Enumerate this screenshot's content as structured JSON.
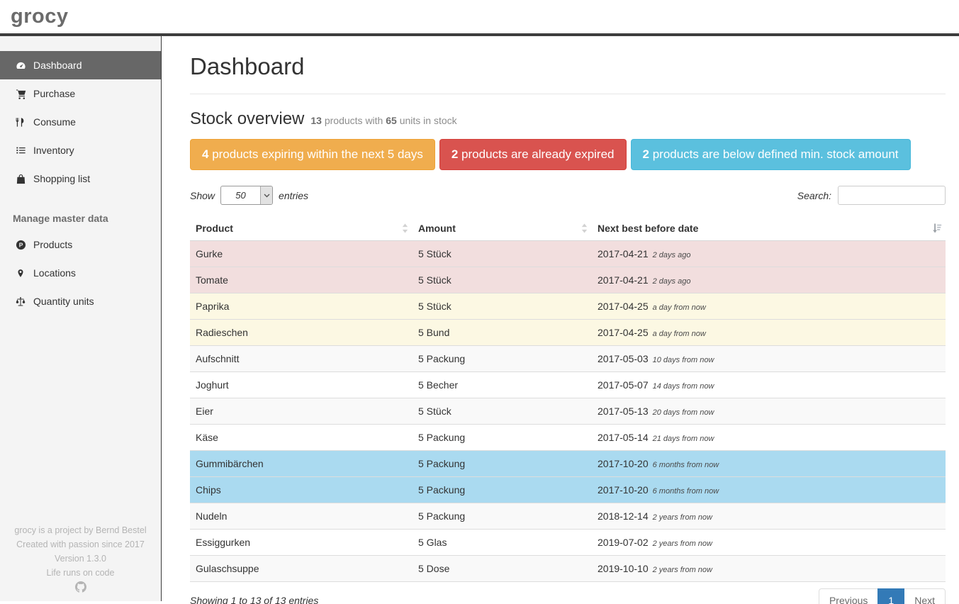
{
  "app": {
    "logo": "grocy"
  },
  "colors": {
    "warning": "#f0ad4e",
    "warning_border": "#eea236",
    "danger": "#d9534f",
    "danger_border": "#d43f3a",
    "info": "#5bc0de",
    "info_border": "#46b8da",
    "row_expired": "#f2dede",
    "row_expiring": "#fcf8e3",
    "row_below_min": "#aadaf0",
    "pagination_active": "#337ab7",
    "sidebar_active_bg": "#676767"
  },
  "sidebar": {
    "items": [
      {
        "name": "sidebar-item-dashboard",
        "icon": "tachometer-icon",
        "label": "Dashboard",
        "active": true
      },
      {
        "name": "sidebar-item-purchase",
        "icon": "shopping-cart-icon",
        "label": "Purchase",
        "active": false
      },
      {
        "name": "sidebar-item-consume",
        "icon": "cutlery-icon",
        "label": "Consume",
        "active": false
      },
      {
        "name": "sidebar-item-inventory",
        "icon": "list-icon",
        "label": "Inventory",
        "active": false
      },
      {
        "name": "sidebar-item-shopping-list",
        "icon": "shopping-bag-icon",
        "label": "Shopping list",
        "active": false
      }
    ],
    "section_header": "Manage master data",
    "master_items": [
      {
        "name": "sidebar-item-products",
        "icon": "product-hunt-icon",
        "label": "Products",
        "active": false
      },
      {
        "name": "sidebar-item-locations",
        "icon": "map-marker-icon",
        "label": "Locations",
        "active": false
      },
      {
        "name": "sidebar-item-quantity-units",
        "icon": "balance-scale-icon",
        "label": "Quantity units",
        "active": false
      }
    ],
    "footer": {
      "line1": "grocy is a project by Bernd Bestel",
      "line2": "Created with passion since 2017",
      "line3": "Version 1.3.0",
      "line4": "Life runs on code",
      "icon": "github-icon"
    }
  },
  "main": {
    "title": "Dashboard",
    "stock_overview": {
      "heading": "Stock overview",
      "products_count": "13",
      "mid_text": " products with ",
      "units_count": "65",
      "end_text": " units in stock"
    },
    "alerts": [
      {
        "count": "4",
        "text": " products expiring within the next 5 days",
        "color": "#f0ad4e",
        "border": "#eea236"
      },
      {
        "count": "2",
        "text": " products are already expired",
        "color": "#d9534f",
        "border": "#d43f3a"
      },
      {
        "count": "2",
        "text": " products are below defined min. stock amount",
        "color": "#5bc0de",
        "border": "#46b8da"
      }
    ],
    "table_controls": {
      "show_label": "Show",
      "page_size": "50",
      "entries_label": "entries",
      "search_label": "Search:",
      "search_value": ""
    },
    "table": {
      "columns": [
        "Product",
        "Amount",
        "Next best before date"
      ],
      "rows": [
        {
          "product": "Gurke",
          "amount": "5 Stück",
          "date": "2017-04-21",
          "relative": "2 days ago",
          "status": "expired"
        },
        {
          "product": "Tomate",
          "amount": "5 Stück",
          "date": "2017-04-21",
          "relative": "2 days ago",
          "status": "expired"
        },
        {
          "product": "Paprika",
          "amount": "5 Stück",
          "date": "2017-04-25",
          "relative": "a day from now",
          "status": "expiring"
        },
        {
          "product": "Radieschen",
          "amount": "5 Bund",
          "date": "2017-04-25",
          "relative": "a day from now",
          "status": "expiring"
        },
        {
          "product": "Aufschnitt",
          "amount": "5 Packung",
          "date": "2017-05-03",
          "relative": "10 days from now",
          "status": "none"
        },
        {
          "product": "Joghurt",
          "amount": "5 Becher",
          "date": "2017-05-07",
          "relative": "14 days from now",
          "status": "none"
        },
        {
          "product": "Eier",
          "amount": "5 Stück",
          "date": "2017-05-13",
          "relative": "20 days from now",
          "status": "none"
        },
        {
          "product": "Käse",
          "amount": "5 Packung",
          "date": "2017-05-14",
          "relative": "21 days from now",
          "status": "none"
        },
        {
          "product": "Gummibärchen",
          "amount": "5 Packung",
          "date": "2017-10-20",
          "relative": "6 months from now",
          "status": "below-min"
        },
        {
          "product": "Chips",
          "amount": "5 Packung",
          "date": "2017-10-20",
          "relative": "6 months from now",
          "status": "below-min"
        },
        {
          "product": "Nudeln",
          "amount": "5 Packung",
          "date": "2018-12-14",
          "relative": "2 years from now",
          "status": "none"
        },
        {
          "product": "Essiggurken",
          "amount": "5 Glas",
          "date": "2019-07-02",
          "relative": "2 years from now",
          "status": "none"
        },
        {
          "product": "Gulaschsuppe",
          "amount": "5 Dose",
          "date": "2019-10-10",
          "relative": "2 years from now",
          "status": "none"
        }
      ]
    },
    "table_footer": {
      "info": "Showing 1 to 13 of 13 entries",
      "pagination": {
        "previous": "Previous",
        "page": "1",
        "next": "Next"
      }
    }
  }
}
